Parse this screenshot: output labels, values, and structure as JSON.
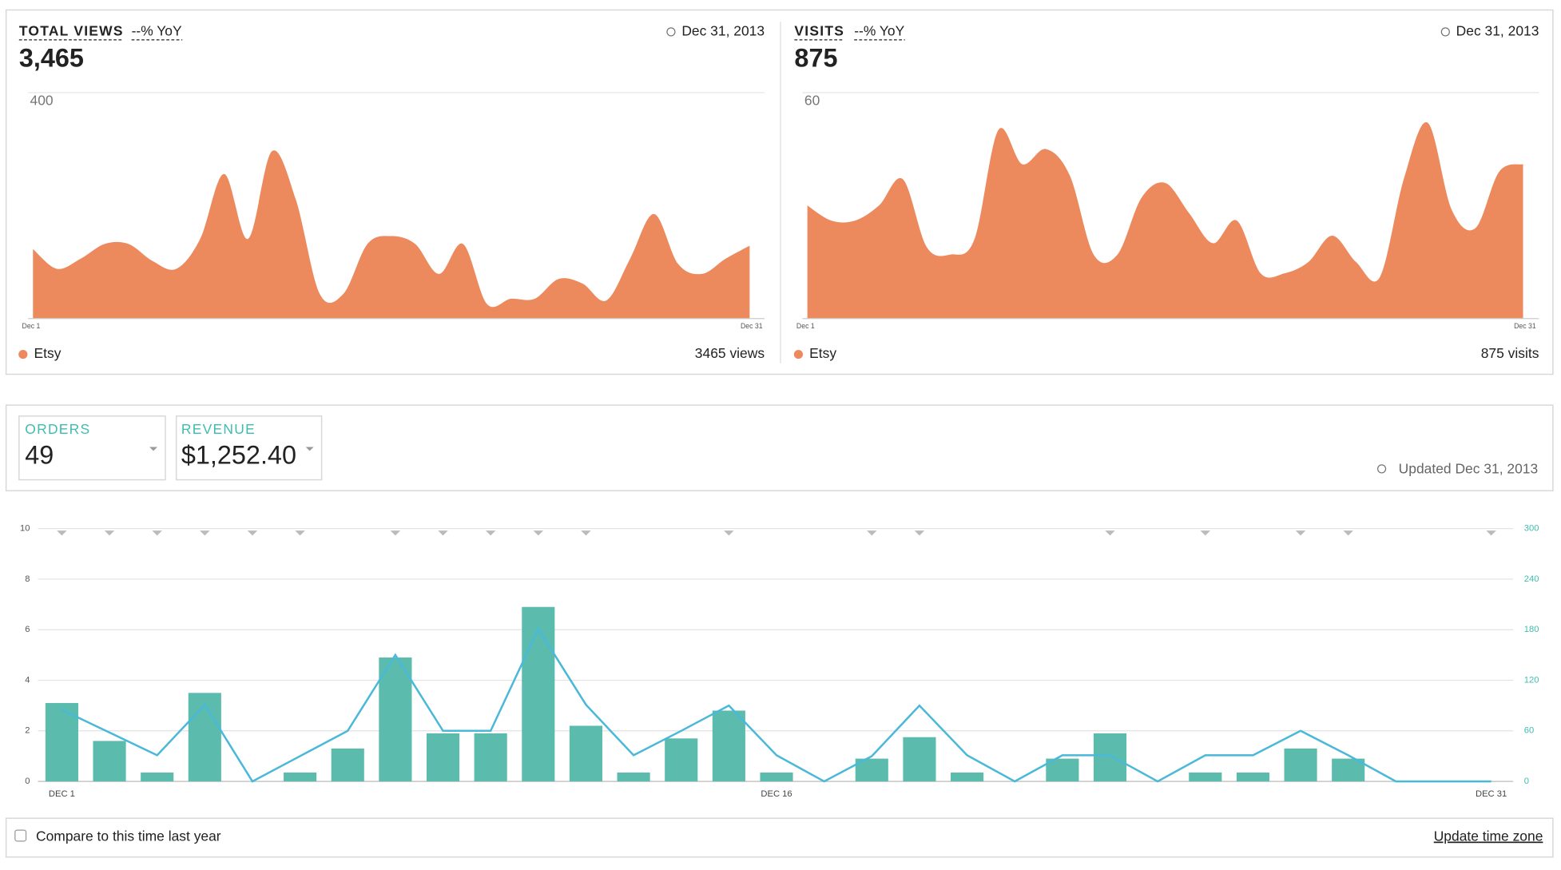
{
  "views_panel": {
    "title": "TOTAL VIEWS",
    "yoy": "--% YoY",
    "date": "Dec 31, 2013",
    "total": "3,465",
    "legend": "Etsy",
    "legend_total": "3465 views"
  },
  "visits_panel": {
    "title": "VISITS",
    "yoy": "--% YoY",
    "date": "Dec 31, 2013",
    "total": "875",
    "legend": "Etsy",
    "legend_total": "875 visits"
  },
  "sales_panel": {
    "orders_total": "49",
    "revenue_total": "$1,252.40",
    "updated": "Updated Dec 31, 2013"
  },
  "footer": {
    "compare": "Compare to this time last year",
    "link": "Update time zone"
  },
  "chart_data": [
    {
      "type": "area",
      "categories": [
        "Dec 1",
        null,
        null,
        null,
        null,
        null,
        null,
        null,
        null,
        null,
        null,
        null,
        null,
        null,
        null,
        null,
        null,
        null,
        null,
        null,
        null,
        null,
        null,
        null,
        null,
        null,
        null,
        null,
        null,
        null,
        "Dec 31"
      ],
      "series": [
        {
          "name": "Etsy",
          "color": "#ec8a5e",
          "values": [
            123,
            88,
            106,
            132,
            132,
            102,
            88,
            141,
            256,
            141,
            296,
            211,
            44,
            44,
            132,
            146,
            132,
            79,
            132,
            26,
            35,
            35,
            70,
            62,
            32,
            106,
            185,
            97,
            79,
            106,
            129
          ]
        }
      ],
      "ylim": [
        0,
        400
      ],
      "yticks": [
        400
      ]
    },
    {
      "type": "area",
      "categories": [
        "Dec 1",
        null,
        null,
        null,
        null,
        null,
        null,
        null,
        null,
        null,
        null,
        null,
        null,
        null,
        null,
        null,
        null,
        null,
        null,
        null,
        null,
        null,
        null,
        null,
        null,
        null,
        null,
        null,
        null,
        null,
        "Dec 31"
      ],
      "series": [
        {
          "name": "Etsy",
          "color": "#ec8a5e",
          "values": [
            30,
            26,
            26,
            30,
            37,
            19,
            17,
            21,
            50,
            41,
            45,
            38,
            17,
            17,
            32,
            36,
            28,
            20,
            26,
            12,
            12,
            15,
            22,
            15,
            11,
            37,
            52,
            29,
            24,
            39,
            41
          ]
        }
      ],
      "ylim": [
        0,
        60
      ],
      "yticks": [
        60
      ]
    },
    {
      "type": "combo",
      "categories": [
        "DEC 1",
        null,
        null,
        null,
        null,
        null,
        null,
        null,
        null,
        null,
        null,
        null,
        null,
        null,
        null,
        "DEC 16",
        null,
        null,
        null,
        null,
        null,
        null,
        null,
        null,
        null,
        null,
        null,
        null,
        null,
        null,
        "DEC 31"
      ],
      "series": [
        {
          "name": "ORDERS",
          "type": "bar",
          "color": "#5bbcae",
          "values": [
            3.1,
            1.6,
            0.35,
            3.5,
            0,
            0.35,
            1.3,
            4.9,
            1.9,
            1.9,
            6.9,
            2.2,
            0.35,
            1.7,
            2.8,
            0.35,
            0,
            0.9,
            1.75,
            0.35,
            0,
            0.9,
            1.9,
            0,
            0.35,
            0.35,
            1.3,
            0.9,
            0,
            0,
            0
          ]
        },
        {
          "name": "REVENUE",
          "type": "line",
          "axis": "y2",
          "color": "#4ab8d8",
          "values": [
            85,
            58,
            31,
            91,
            0,
            30,
            60,
            150,
            60,
            60,
            181,
            91,
            31,
            60,
            90,
            31,
            0,
            30,
            90,
            31,
            0,
            31,
            31,
            0,
            31,
            31,
            60,
            31,
            0,
            0,
            0
          ]
        }
      ],
      "ylim": [
        0,
        10
      ],
      "yticks": [
        0,
        2,
        4,
        6,
        8,
        10
      ],
      "y2lim": [
        0,
        300
      ],
      "y2ticks": [
        0,
        60,
        120,
        180,
        240,
        300
      ],
      "grid": true
    }
  ]
}
